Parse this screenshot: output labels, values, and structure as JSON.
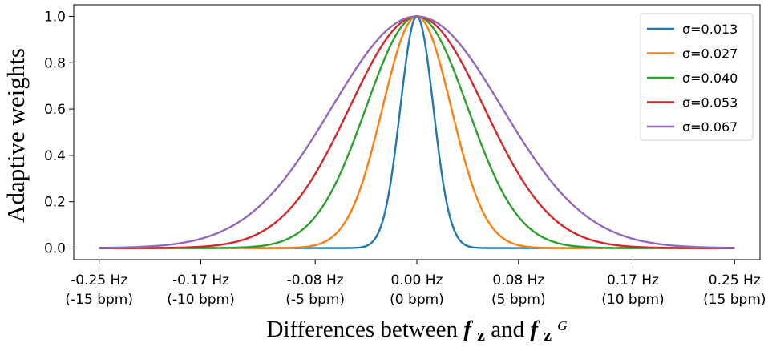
{
  "chart_data": {
    "type": "line",
    "title": "",
    "ylabel": "Adaptive weights",
    "xlabel": {
      "prefix": "Differences between ",
      "f1_base": "f",
      "f1_sub": "z",
      "middle": " and ",
      "f2_base": "f",
      "f2_sub": "z",
      "f2_sup": "G"
    },
    "xlim": [
      -0.27,
      0.27
    ],
    "ylim": [
      -0.05,
      1.05
    ],
    "x_range": [
      -0.25,
      0.25
    ],
    "x_ticks": [
      {
        "value": -0.25,
        "line1": "-0.25 Hz",
        "line2": "(-15 bpm)"
      },
      {
        "value": -0.17,
        "line1": "-0.17 Hz",
        "line2": "(-10 bpm)"
      },
      {
        "value": -0.08,
        "line1": "-0.08 Hz",
        "line2": "(-5 bpm)"
      },
      {
        "value": 0.0,
        "line1": "0.00 Hz",
        "line2": "(0 bpm)"
      },
      {
        "value": 0.08,
        "line1": "0.08 Hz",
        "line2": "(5 bpm)"
      },
      {
        "value": 0.17,
        "line1": "0.17 Hz",
        "line2": "(10 bpm)"
      },
      {
        "value": 0.25,
        "line1": "0.25 Hz",
        "line2": "(15 bpm)"
      }
    ],
    "y_ticks": [
      {
        "value": 0.0,
        "label": "0.0"
      },
      {
        "value": 0.2,
        "label": "0.2"
      },
      {
        "value": 0.4,
        "label": "0.4"
      },
      {
        "value": 0.6,
        "label": "0.6"
      },
      {
        "value": 0.8,
        "label": "0.8"
      },
      {
        "value": 1.0,
        "label": "1.0"
      }
    ],
    "legend_position": "top-right",
    "series": [
      {
        "name": "σ=0.013",
        "sigma": 0.013,
        "color": "#1f77b4"
      },
      {
        "name": "σ=0.027",
        "sigma": 0.027,
        "color": "#ff7f0e"
      },
      {
        "name": "σ=0.040",
        "sigma": 0.04,
        "color": "#2ca02c"
      },
      {
        "name": "σ=0.053",
        "sigma": 0.053,
        "color": "#d62728"
      },
      {
        "name": "σ=0.067",
        "sigma": 0.067,
        "color": "#9467bd"
      }
    ]
  }
}
